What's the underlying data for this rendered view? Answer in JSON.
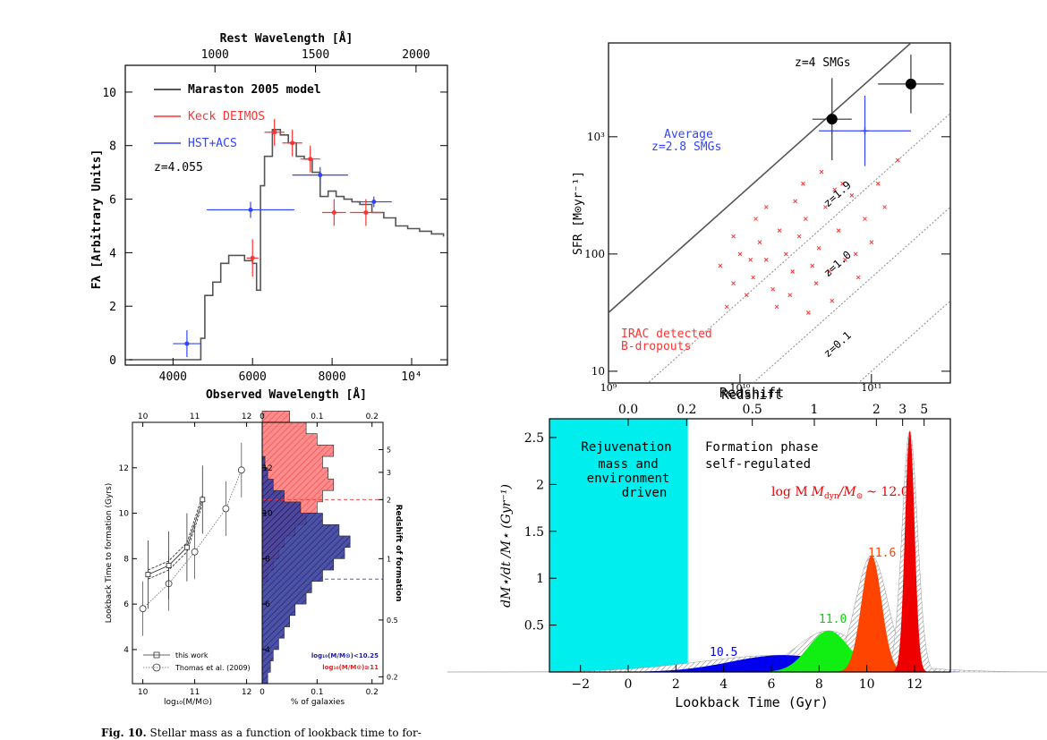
{
  "chart_data": [
    {
      "id": "sed",
      "type": "line",
      "xlabel": "Observed Wavelength [Å]",
      "ylabel": "Fλ [Arbitrary Units]",
      "top_axis_label": "Rest Wavelength [Å]",
      "x_ticks": [
        "4000",
        "6000",
        "8000",
        "10⁴"
      ],
      "top_ticks": [
        "1000",
        "1500",
        "2000"
      ],
      "y_ticks": [
        "0",
        "2",
        "4",
        "6",
        "8",
        "10"
      ],
      "xlim": [
        2800,
        10900
      ],
      "ylim": [
        -0.2,
        11.0
      ],
      "legend": [
        {
          "label": "Maraston 2005 model",
          "color": "#555555"
        },
        {
          "label": "Keck DEIMOS",
          "color": "#ff3333"
        },
        {
          "label": "HST+ACS",
          "color": "#3344ff"
        }
      ],
      "annotation": "z=4.055",
      "hst_points": [
        {
          "x": 4350,
          "y": 0.6,
          "xerr": 350,
          "yerr": 0.5
        },
        {
          "x": 5950,
          "y": 5.6,
          "xerr": 1100,
          "yerr": 0.3
        },
        {
          "x": 7700,
          "y": 6.9,
          "xerr": 700,
          "yerr": 0.3
        },
        {
          "x": 9050,
          "y": 5.9,
          "xerr": 450,
          "yerr": 0.2
        }
      ],
      "keck_points": [
        {
          "x": 6000,
          "y": 3.8,
          "xerr": 150,
          "yerr": 0.7
        },
        {
          "x": 6550,
          "y": 8.5,
          "xerr": 250,
          "yerr": 0.5
        },
        {
          "x": 7000,
          "y": 8.1,
          "xerr": 250,
          "yerr": 0.5
        },
        {
          "x": 7450,
          "y": 7.5,
          "xerr": 250,
          "yerr": 0.5
        },
        {
          "x": 8050,
          "y": 5.5,
          "xerr": 300,
          "yerr": 0.5
        },
        {
          "x": 8850,
          "y": 5.5,
          "xerr": 400,
          "yerr": 0.5
        }
      ],
      "model_x": [
        2900,
        4600,
        4700,
        4800,
        5000,
        5200,
        5400,
        5600,
        5800,
        6000,
        6100,
        6200,
        6300,
        6500,
        6700,
        6900,
        7100,
        7300,
        7500,
        7700,
        7900,
        8100,
        8300,
        8500,
        8700,
        9000,
        9300,
        9600,
        9900,
        10200,
        10500,
        10800
      ],
      "model_y": [
        0,
        0,
        0.8,
        2.4,
        2.9,
        3.6,
        3.9,
        3.9,
        3.7,
        3.6,
        2.6,
        6.5,
        7.6,
        8.6,
        8.4,
        8.1,
        7.6,
        7.5,
        7.0,
        6.1,
        6.3,
        6.1,
        6.0,
        5.9,
        5.8,
        5.5,
        5.3,
        5.0,
        4.9,
        4.8,
        4.7,
        4.6
      ]
    },
    {
      "id": "sfr",
      "type": "scatter",
      "xlabel": "Redshift",
      "ylabel": "SFR [M⊙yr⁻¹]",
      "y_ticks": [
        "10",
        "100",
        "10³"
      ],
      "x_ticks": [
        "10⁹",
        "10¹⁰",
        "10¹¹"
      ],
      "xlim_log": [
        9.0,
        11.6
      ],
      "ylim_log": [
        0.9,
        3.8
      ],
      "annotations": [
        "z=4 SMGs",
        "Average",
        "z=2.8 SMGs",
        "IRAC detected",
        "B-dropouts"
      ],
      "line_labels": [
        "z=1.9",
        "z=1.0",
        "z=0.1"
      ],
      "line_offsets": [
        0.0,
        -0.9,
        -1.7,
        -2.5
      ],
      "smg_points": [
        {
          "x": 10.7,
          "y": 3.15,
          "xerr": 0.15,
          "yerr": 0.35
        },
        {
          "x": 11.3,
          "y": 3.45,
          "xerr": 0.25,
          "yerr": 0.25
        }
      ],
      "avg_point": {
        "x": 10.95,
        "y": 3.05,
        "xerr": 0.35,
        "yerr": 0.3
      },
      "crosses": [
        [
          9.85,
          1.9
        ],
        [
          9.95,
          1.75
        ],
        [
          10.0,
          2.0
        ],
        [
          10.1,
          1.8
        ],
        [
          10.15,
          2.1
        ],
        [
          10.2,
          1.95
        ],
        [
          10.25,
          1.7
        ],
        [
          10.3,
          2.2
        ],
        [
          10.35,
          2.0
        ],
        [
          10.4,
          1.85
        ],
        [
          10.45,
          2.15
        ],
        [
          10.5,
          2.3
        ],
        [
          10.55,
          1.9
        ],
        [
          10.6,
          2.05
        ],
        [
          10.65,
          2.4
        ],
        [
          10.7,
          1.6
        ],
        [
          10.75,
          2.2
        ],
        [
          10.8,
          1.95
        ],
        [
          10.85,
          2.5
        ],
        [
          10.9,
          1.8
        ],
        [
          10.95,
          2.3
        ],
        [
          11.0,
          2.1
        ],
        [
          11.05,
          2.6
        ],
        [
          9.9,
          1.55
        ],
        [
          10.05,
          1.65
        ],
        [
          10.12,
          2.3
        ],
        [
          10.28,
          1.55
        ],
        [
          10.42,
          2.45
        ],
        [
          10.58,
          1.75
        ],
        [
          10.72,
          2.55
        ],
        [
          10.88,
          2.0
        ],
        [
          11.1,
          2.4
        ],
        [
          11.2,
          2.8
        ],
        [
          10.38,
          1.65
        ],
        [
          10.2,
          2.4
        ],
        [
          10.48,
          2.6
        ],
        [
          10.62,
          2.7
        ],
        [
          10.78,
          2.6
        ],
        [
          9.95,
          2.15
        ],
        [
          10.08,
          1.95
        ],
        [
          10.52,
          1.5
        ],
        [
          10.68,
          1.85
        ]
      ]
    },
    {
      "id": "lookback",
      "type": "line",
      "xlabel": "log₁₀(M/M⊙)",
      "ylabel": "Lookback Time to formation (Gyrs)",
      "x_ticks": [
        "10",
        "11",
        "12"
      ],
      "y_ticks": [
        "4",
        "6",
        "8",
        "10",
        "12"
      ],
      "top_ticks": [
        "10",
        "11",
        "12"
      ],
      "xlim": [
        9.8,
        12.3
      ],
      "ylim": [
        2.5,
        14.0
      ],
      "legend": [
        "this work",
        "Thomas et al. (2009)"
      ],
      "this_work_x": [
        10.1,
        10.5,
        10.85,
        11.15
      ],
      "this_work_y": [
        7.3,
        7.7,
        8.5,
        10.6
      ],
      "thomas_x": [
        10.0,
        10.5,
        11.0,
        11.6,
        11.9
      ],
      "thomas_y": [
        5.8,
        6.9,
        8.3,
        10.2,
        11.9
      ]
    },
    {
      "id": "hist",
      "type": "bar",
      "xlabel": "% of galaxies",
      "ylabel_right": "Redshift of formation",
      "x_ticks": [
        "0",
        "0.1",
        "0.2"
      ],
      "top_ticks": [
        "0",
        "0.1",
        "0.2"
      ],
      "y_ticks": [
        "4",
        "6",
        "8",
        "10",
        "12"
      ],
      "right_ticks": [
        "0.2",
        "0.5",
        "1",
        "2",
        "3",
        "5"
      ],
      "legend": [
        "log₁₀(M/M⊙)<10.25",
        "log₁₀(M/M⊙)≥11"
      ],
      "bins_start": 2.5,
      "bin_width": 0.5,
      "blue_values": [
        0.01,
        0.015,
        0.02,
        0.03,
        0.04,
        0.05,
        0.06,
        0.08,
        0.09,
        0.11,
        0.13,
        0.15,
        0.16,
        0.14,
        0.11,
        0.07,
        0.04,
        0.02,
        0.01,
        0.005
      ],
      "red_values": [
        0,
        0,
        0,
        0,
        0,
        0,
        0,
        0,
        0,
        0.01,
        0.02,
        0.03,
        0.04,
        0.06,
        0.08,
        0.1,
        0.11,
        0.13,
        0.12,
        0.11,
        0.13,
        0.1,
        0.08,
        0.05
      ],
      "blue_median": 7.1,
      "red_median": 10.6
    },
    {
      "id": "sfh",
      "type": "area",
      "xlabel": "Lookback Time (Gyr)",
      "ylabel": "dM⋆/dt /M⋆ (Gyr⁻¹)",
      "top_axis_label": "Redshift",
      "x_ticks": [
        "−2",
        "0",
        "2",
        "4",
        "6",
        "8",
        "10",
        "12"
      ],
      "y_ticks": [
        "0.5",
        "1",
        "1.5",
        "2",
        "2.5"
      ],
      "top_ticks": [
        "0.0",
        "0.2",
        "0.5",
        "1",
        "2",
        "3",
        "5"
      ],
      "xlim": [
        -3.3,
        13.5
      ],
      "ylim": [
        0,
        2.7
      ],
      "region_text": [
        "Rejuvenation",
        "mass and",
        "environment",
        "driven",
        "Formation phase",
        "self-regulated"
      ],
      "mass_label_prefix": "log M",
      "mass_label_suffix": "~ 12.0",
      "curves": [
        {
          "label": "10.5",
          "mu": 6.5,
          "sigma": 2.2,
          "peak": 0.18,
          "color": "#0000ee"
        },
        {
          "label": "11.0",
          "mu": 8.4,
          "sigma": 0.85,
          "peak": 0.44,
          "color": "#11ee11"
        },
        {
          "label": "11.6",
          "mu": 10.2,
          "sigma": 0.42,
          "peak": 1.24,
          "color": "#ff4400"
        },
        {
          "label": "12.0",
          "mu": 11.8,
          "sigma": 0.2,
          "peak": 2.57,
          "color": "#ee0000"
        }
      ]
    }
  ],
  "caption": {
    "bold": "Fig. 10.",
    "text": "Stellar mass as a function of lookback time to for-"
  }
}
